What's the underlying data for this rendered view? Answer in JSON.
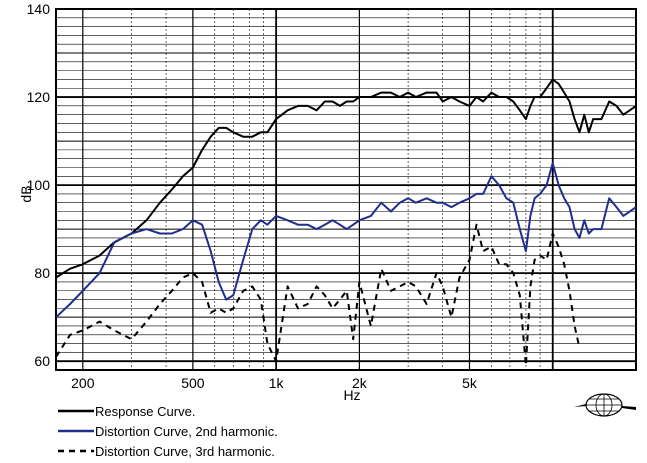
{
  "chart_data": {
    "type": "line",
    "xlabel": "Hz",
    "ylabel": "dB",
    "x_scale": "log",
    "xlim": [
      160,
      20000
    ],
    "ylim": [
      58,
      140
    ],
    "x_ticks": [
      {
        "value": 200,
        "label": "200"
      },
      {
        "value": 500,
        "label": "500"
      },
      {
        "value": 1000,
        "label": "1k"
      },
      {
        "value": 2000,
        "label": "2k"
      },
      {
        "value": 5000,
        "label": "5k"
      }
    ],
    "y_ticks": [
      {
        "value": 60,
        "label": "60"
      },
      {
        "value": 80,
        "label": "80"
      },
      {
        "value": 100,
        "label": "100"
      },
      {
        "value": 120,
        "label": "120"
      },
      {
        "value": 140,
        "label": "140"
      }
    ],
    "grid": true,
    "legend_position": "bottom-left",
    "series": [
      {
        "name": "Response Curve.",
        "color": "#000000",
        "style": "solid",
        "points": [
          [
            160,
            79
          ],
          [
            180,
            81
          ],
          [
            200,
            82
          ],
          [
            230,
            84
          ],
          [
            260,
            87
          ],
          [
            300,
            89
          ],
          [
            340,
            92
          ],
          [
            380,
            96
          ],
          [
            420,
            99
          ],
          [
            460,
            102
          ],
          [
            500,
            104
          ],
          [
            540,
            108
          ],
          [
            580,
            111
          ],
          [
            620,
            113
          ],
          [
            660,
            113
          ],
          [
            700,
            112
          ],
          [
            760,
            111
          ],
          [
            820,
            111
          ],
          [
            880,
            112
          ],
          [
            930,
            112
          ],
          [
            1000,
            115
          ],
          [
            1100,
            117
          ],
          [
            1200,
            118
          ],
          [
            1300,
            118
          ],
          [
            1400,
            117
          ],
          [
            1500,
            119
          ],
          [
            1600,
            119
          ],
          [
            1700,
            118
          ],
          [
            1800,
            119
          ],
          [
            1900,
            119
          ],
          [
            2000,
            120
          ],
          [
            2200,
            120
          ],
          [
            2400,
            121
          ],
          [
            2600,
            121
          ],
          [
            2800,
            120
          ],
          [
            3000,
            121
          ],
          [
            3200,
            120
          ],
          [
            3500,
            121
          ],
          [
            3800,
            121
          ],
          [
            4000,
            119
          ],
          [
            4300,
            120
          ],
          [
            4600,
            119
          ],
          [
            5000,
            118
          ],
          [
            5300,
            120
          ],
          [
            5600,
            119
          ],
          [
            6000,
            121
          ],
          [
            6400,
            120
          ],
          [
            6800,
            120
          ],
          [
            7200,
            119
          ],
          [
            7600,
            117
          ],
          [
            8000,
            115
          ],
          [
            8300,
            118
          ],
          [
            8600,
            120
          ],
          [
            9000,
            120
          ],
          [
            9500,
            122
          ],
          [
            10000,
            124
          ],
          [
            10500,
            123
          ],
          [
            11000,
            121
          ],
          [
            11500,
            119
          ],
          [
            12000,
            115
          ],
          [
            12500,
            112
          ],
          [
            13000,
            116
          ],
          [
            13500,
            112
          ],
          [
            14000,
            115
          ],
          [
            15000,
            115
          ],
          [
            16000,
            119
          ],
          [
            17000,
            118
          ],
          [
            18000,
            116
          ],
          [
            19000,
            117
          ],
          [
            20000,
            118
          ]
        ]
      },
      {
        "name": "Distortion Curve, 2nd harmonic.",
        "color": "#1f2e8f",
        "style": "solid",
        "points": [
          [
            160,
            70
          ],
          [
            180,
            73
          ],
          [
            200,
            76
          ],
          [
            230,
            80
          ],
          [
            260,
            87
          ],
          [
            300,
            89
          ],
          [
            340,
            90
          ],
          [
            380,
            89
          ],
          [
            420,
            89
          ],
          [
            460,
            90
          ],
          [
            500,
            92
          ],
          [
            540,
            91
          ],
          [
            580,
            85
          ],
          [
            620,
            78
          ],
          [
            660,
            74
          ],
          [
            700,
            75
          ],
          [
            760,
            83
          ],
          [
            820,
            90
          ],
          [
            880,
            92
          ],
          [
            930,
            91
          ],
          [
            1000,
            93
          ],
          [
            1100,
            92
          ],
          [
            1200,
            91
          ],
          [
            1300,
            91
          ],
          [
            1400,
            90
          ],
          [
            1500,
            91
          ],
          [
            1600,
            92
          ],
          [
            1700,
            91
          ],
          [
            1800,
            90
          ],
          [
            1900,
            91
          ],
          [
            2000,
            92
          ],
          [
            2200,
            93
          ],
          [
            2400,
            96
          ],
          [
            2600,
            94
          ],
          [
            2800,
            96
          ],
          [
            3000,
            97
          ],
          [
            3200,
            96
          ],
          [
            3500,
            97
          ],
          [
            3800,
            96
          ],
          [
            4000,
            96
          ],
          [
            4300,
            95
          ],
          [
            4600,
            96
          ],
          [
            5000,
            97
          ],
          [
            5300,
            98
          ],
          [
            5600,
            98
          ],
          [
            6000,
            102
          ],
          [
            6400,
            100
          ],
          [
            6800,
            97
          ],
          [
            7200,
            96
          ],
          [
            7600,
            90
          ],
          [
            8000,
            85
          ],
          [
            8300,
            93
          ],
          [
            8600,
            97
          ],
          [
            9000,
            98
          ],
          [
            9500,
            100
          ],
          [
            10000,
            105
          ],
          [
            10500,
            100
          ],
          [
            11000,
            97
          ],
          [
            11500,
            95
          ],
          [
            12000,
            90
          ],
          [
            12500,
            88
          ],
          [
            13000,
            92
          ],
          [
            13500,
            89
          ],
          [
            14000,
            90
          ],
          [
            15000,
            90
          ],
          [
            16000,
            97
          ],
          [
            17000,
            95
          ],
          [
            18000,
            93
          ],
          [
            19000,
            94
          ],
          [
            20000,
            95
          ]
        ]
      },
      {
        "name": "Distortion Curve, 3rd harmonic.",
        "color": "#000000",
        "style": "dashed",
        "points": [
          [
            160,
            61
          ],
          [
            180,
            66
          ],
          [
            200,
            67
          ],
          [
            230,
            69
          ],
          [
            260,
            67
          ],
          [
            300,
            65
          ],
          [
            340,
            69
          ],
          [
            380,
            73
          ],
          [
            420,
            76
          ],
          [
            460,
            79
          ],
          [
            500,
            80
          ],
          [
            540,
            78
          ],
          [
            580,
            71
          ],
          [
            620,
            72
          ],
          [
            660,
            71
          ],
          [
            700,
            72
          ],
          [
            760,
            76
          ],
          [
            820,
            77
          ],
          [
            880,
            74
          ],
          [
            930,
            64
          ],
          [
            1000,
            60
          ],
          [
            1100,
            77
          ],
          [
            1200,
            72
          ],
          [
            1300,
            73
          ],
          [
            1400,
            77
          ],
          [
            1500,
            75
          ],
          [
            1600,
            72
          ],
          [
            1700,
            74
          ],
          [
            1800,
            76
          ],
          [
            1900,
            65
          ],
          [
            2000,
            78
          ],
          [
            2200,
            68
          ],
          [
            2400,
            81
          ],
          [
            2600,
            76
          ],
          [
            2800,
            77
          ],
          [
            3000,
            78
          ],
          [
            3200,
            77
          ],
          [
            3500,
            73
          ],
          [
            3800,
            80
          ],
          [
            4000,
            77
          ],
          [
            4300,
            70
          ],
          [
            4600,
            79
          ],
          [
            5000,
            83
          ],
          [
            5300,
            91
          ],
          [
            5600,
            85
          ],
          [
            6000,
            86
          ],
          [
            6400,
            82
          ],
          [
            6800,
            82
          ],
          [
            7200,
            80
          ],
          [
            7600,
            75
          ],
          [
            8000,
            59
          ],
          [
            8300,
            77
          ],
          [
            8600,
            83
          ],
          [
            9000,
            84
          ],
          [
            9500,
            83
          ],
          [
            10000,
            89
          ],
          [
            10500,
            86
          ],
          [
            11000,
            82
          ],
          [
            11500,
            76
          ],
          [
            12000,
            68
          ],
          [
            12500,
            63
          ]
        ]
      }
    ]
  }
}
